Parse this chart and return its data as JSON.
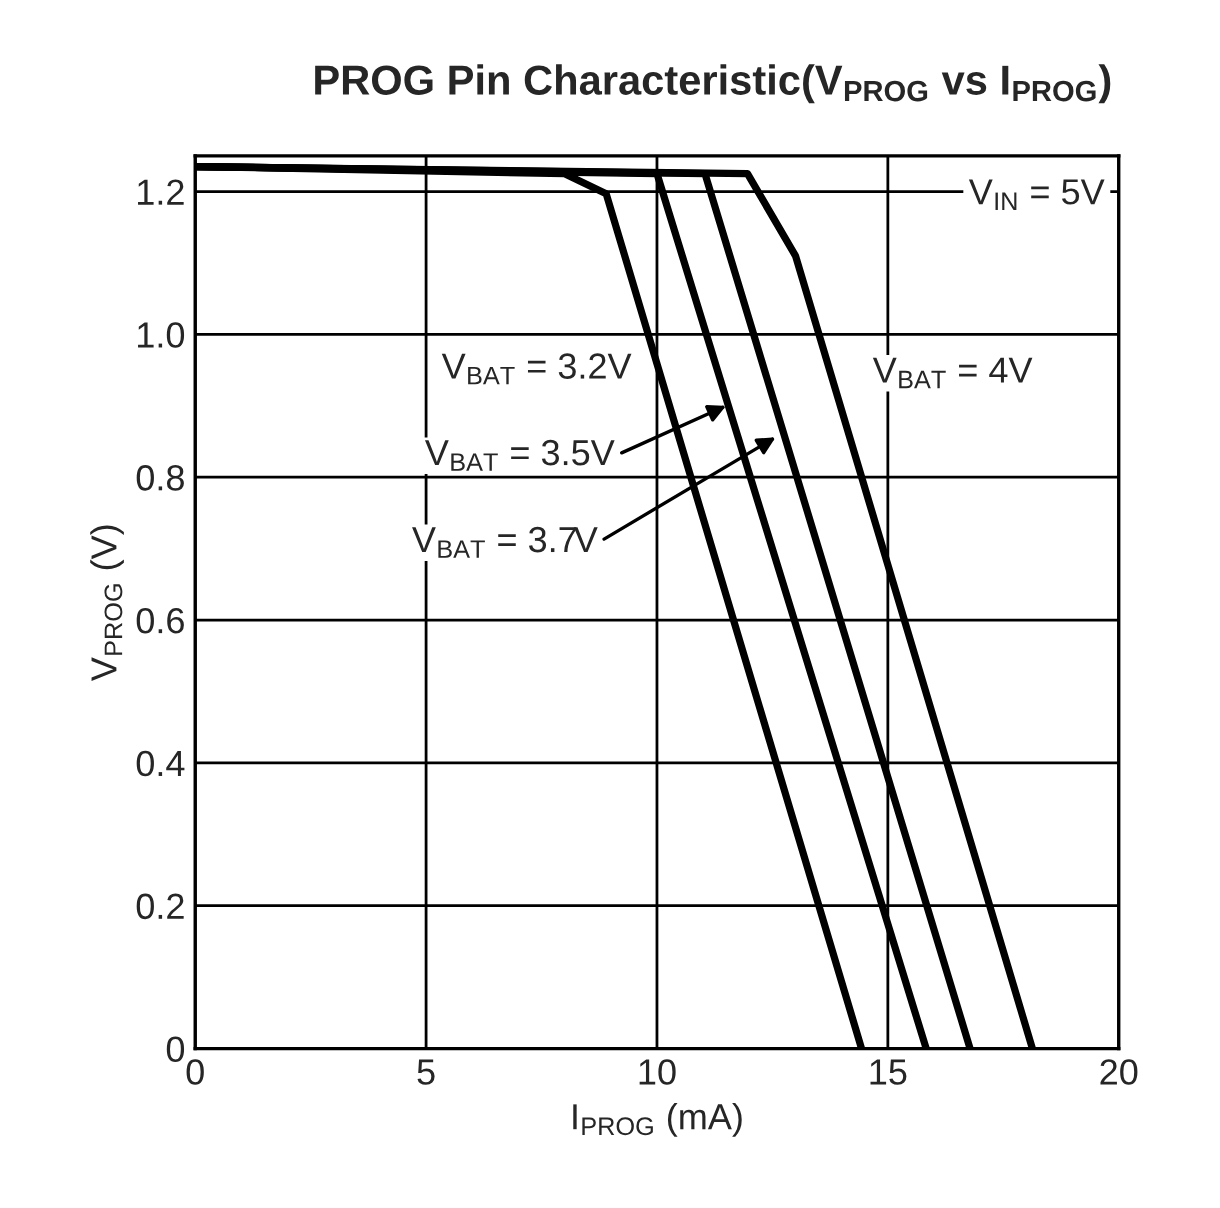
{
  "chart_data": {
    "type": "line",
    "title": "PROG Pin Characteristic(V$_{PROG}$ vs I$_{PROG}$)",
    "xlabel": "I$_{PROG}$ (mA)",
    "ylabel": "V$_{PROG}$ (V)",
    "series": [
      {
        "color": "#000000",
        "x": [
          0,
          8.0,
          8.9,
          14.43
        ],
        "values": [
          1.235,
          1.225,
          1.197,
          0
        ]
      },
      {
        "color": "#000000",
        "x": [
          0,
          10.0,
          15.83
        ],
        "values": [
          1.235,
          1.225,
          0
        ]
      },
      {
        "color": "#000000",
        "x": [
          0,
          11.04,
          16.78
        ],
        "values": [
          1.235,
          1.225,
          0
        ]
      },
      {
        "color": "#000000",
        "x": [
          0,
          11.96,
          13.0,
          18.13
        ],
        "values": [
          1.235,
          1.225,
          1.11,
          0
        ]
      }
    ],
    "xlim": [
      0,
      20
    ],
    "xticks": [
      0,
      5,
      10,
      15,
      20
    ],
    "ylim": [
      0,
      1.25
    ],
    "yticks": [
      0,
      0.2,
      0.4,
      0.6,
      0.8,
      {
        "value": 1,
        "label": "1.0"
      },
      1.2
    ],
    "grid": true,
    "line_style": "solid",
    "marker": "none",
    "annotations": [
      "V$_{IN}$ = 5V",
      {
        "text": "V$_{BAT}$ = 3.2V",
        "x": 10.18,
        "y": 0.92
      },
      {
        "text": "V$_{BAT}$ = 3.5V",
        "x": 11.5,
        "y": 0.9
      },
      {
        "text": "V$_{BAT}$ = 3.7V",
        "x": 12.57,
        "y": 0.856
      },
      {
        "text": "V$_{BAT}$ = 4V",
        "x": 13.83,
        "y": 0.93
      }
    ]
  }
}
